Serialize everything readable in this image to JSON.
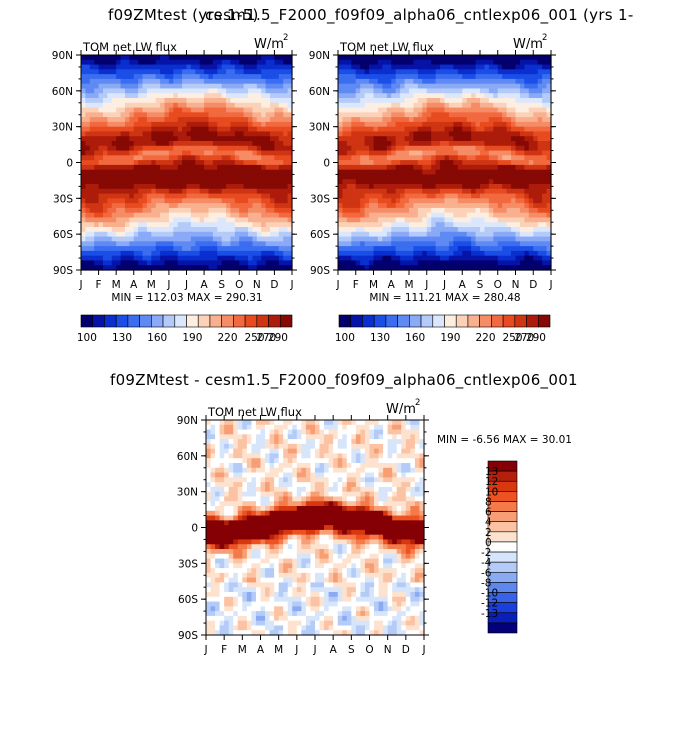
{
  "page": {
    "top_title_left": "f09ZMtest (yrs 1-5)",
    "top_title_right": "cesm1.5_F2000_f09f09_alpha06_cntlexp06_001 (yrs 1-",
    "diff_title": "f09ZMtest - cesm1.5_F2000_f09f09_alpha06_cntlexp06_001"
  },
  "chart_data": [
    {
      "type": "heatmap",
      "panel": "f09ZMtest",
      "title": "TOM net LW flux",
      "units_base": "W/m",
      "units_exp": "2",
      "xlabels": [
        "J",
        "F",
        "M",
        "A",
        "M",
        "J",
        "J",
        "A",
        "S",
        "O",
        "N",
        "D",
        "J"
      ],
      "ylabels": [
        "90N",
        "60N",
        "30N",
        "0",
        "30S",
        "60S",
        "90S"
      ],
      "ylim": [
        -90,
        90
      ],
      "stats": "MIN = 112.03 MAX = 290.31",
      "min": 112.03,
      "max": 290.31,
      "levels_labels": [
        "100",
        "130",
        "160",
        "190",
        "220",
        "250",
        "270",
        "290"
      ],
      "colors": [
        "#03006d",
        "#0613a8",
        "#0a2fcf",
        "#1b4ee7",
        "#3a6df0",
        "#5f8af4",
        "#8aaaf7",
        "#b4cbf9",
        "#dbe7fc",
        "#fdeee2",
        "#fbd2b8",
        "#f8b08e",
        "#f68c66",
        "#f2693f",
        "#e84b1f",
        "#cf3413",
        "#ad1c0b",
        "#870904"
      ]
    },
    {
      "type": "heatmap",
      "panel": "cesm1.5_F2000_f09f09_alpha06_cntlexp06_001",
      "title": "TOM net LW flux",
      "units_base": "W/m",
      "units_exp": "2",
      "xlabels": [
        "J",
        "F",
        "M",
        "A",
        "M",
        "J",
        "J",
        "A",
        "S",
        "O",
        "N",
        "D",
        "J"
      ],
      "ylabels": [
        "90N",
        "60N",
        "30N",
        "0",
        "30S",
        "60S",
        "90S"
      ],
      "ylim": [
        -90,
        90
      ],
      "stats": "MIN = 111.21 MAX = 280.48",
      "min": 111.21,
      "max": 280.48,
      "levels_labels": [
        "100",
        "130",
        "160",
        "190",
        "220",
        "250",
        "270",
        "290"
      ]
    },
    {
      "type": "heatmap",
      "panel": "difference",
      "title": "TOM net LW flux",
      "units_base": "W/m",
      "units_exp": "2",
      "xlabels": [
        "J",
        "F",
        "M",
        "A",
        "M",
        "J",
        "J",
        "A",
        "S",
        "O",
        "N",
        "D",
        "J"
      ],
      "ylabels": [
        "90N",
        "60N",
        "30N",
        "0",
        "30S",
        "60S",
        "90S"
      ],
      "ylim": [
        -90,
        90
      ],
      "stats": "MIN =  -6.56 MAX =  30.01",
      "min": -6.56,
      "max": 30.01,
      "levels_labels": [
        "13",
        "12",
        "10",
        "8",
        "6",
        "4",
        "2",
        "0",
        "-2",
        "-4",
        "-6",
        "-8",
        "-10",
        "-12",
        "-13"
      ],
      "colors": [
        "#850005",
        "#b3200b",
        "#d8380f",
        "#ec5222",
        "#f47a49",
        "#f79e74",
        "#fbc3a4",
        "#fde3cf",
        "#ffffff",
        "#d7e5fb",
        "#b3cbf6",
        "#8aaaf2",
        "#5f88ee",
        "#3a62e6",
        "#1a3fdb",
        "#0a1fb8",
        "#03007a"
      ]
    }
  ]
}
